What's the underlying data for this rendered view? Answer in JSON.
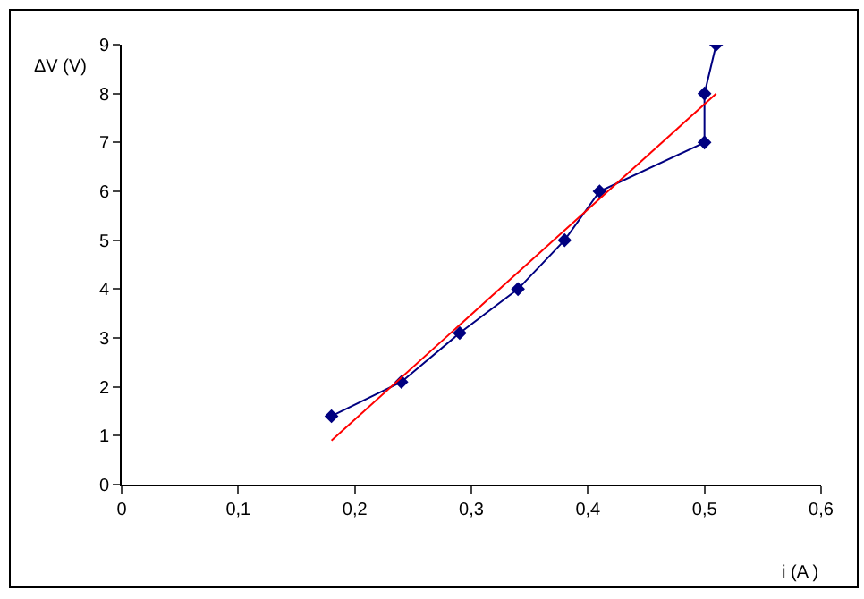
{
  "chart_data": {
    "type": "line",
    "xlabel": "i (A )",
    "ylabel": "ΔV (V)",
    "series": [
      {
        "color": "#000080",
        "x": [
          0.18,
          0.24,
          0.29,
          0.34,
          0.38,
          0.41,
          0.5,
          0.5,
          0.51
        ],
        "values": [
          1.4,
          2.1,
          3.1,
          4.0,
          5.0,
          6.0,
          7.0,
          8.0,
          9.0
        ],
        "marker": "diamond"
      },
      {
        "color": "#ff0000",
        "x": [
          0.18,
          0.51
        ],
        "values": [
          0.9,
          8.0
        ],
        "marker": "none"
      }
    ],
    "xlim": [
      0,
      0.6
    ],
    "xticks": [
      {
        "value": 0,
        "label": "0"
      },
      {
        "value": 0.1,
        "label": "0,1"
      },
      {
        "value": 0.2,
        "label": "0,2"
      },
      {
        "value": 0.3,
        "label": "0,3"
      },
      {
        "value": 0.4,
        "label": "0,4"
      },
      {
        "value": 0.5,
        "label": "0,5"
      },
      {
        "value": 0.6,
        "label": "0,6"
      }
    ],
    "ylim": [
      0,
      9
    ],
    "yticks": [
      0,
      1,
      2,
      3,
      4,
      5,
      6,
      7,
      8,
      9
    ],
    "grid": false
  }
}
